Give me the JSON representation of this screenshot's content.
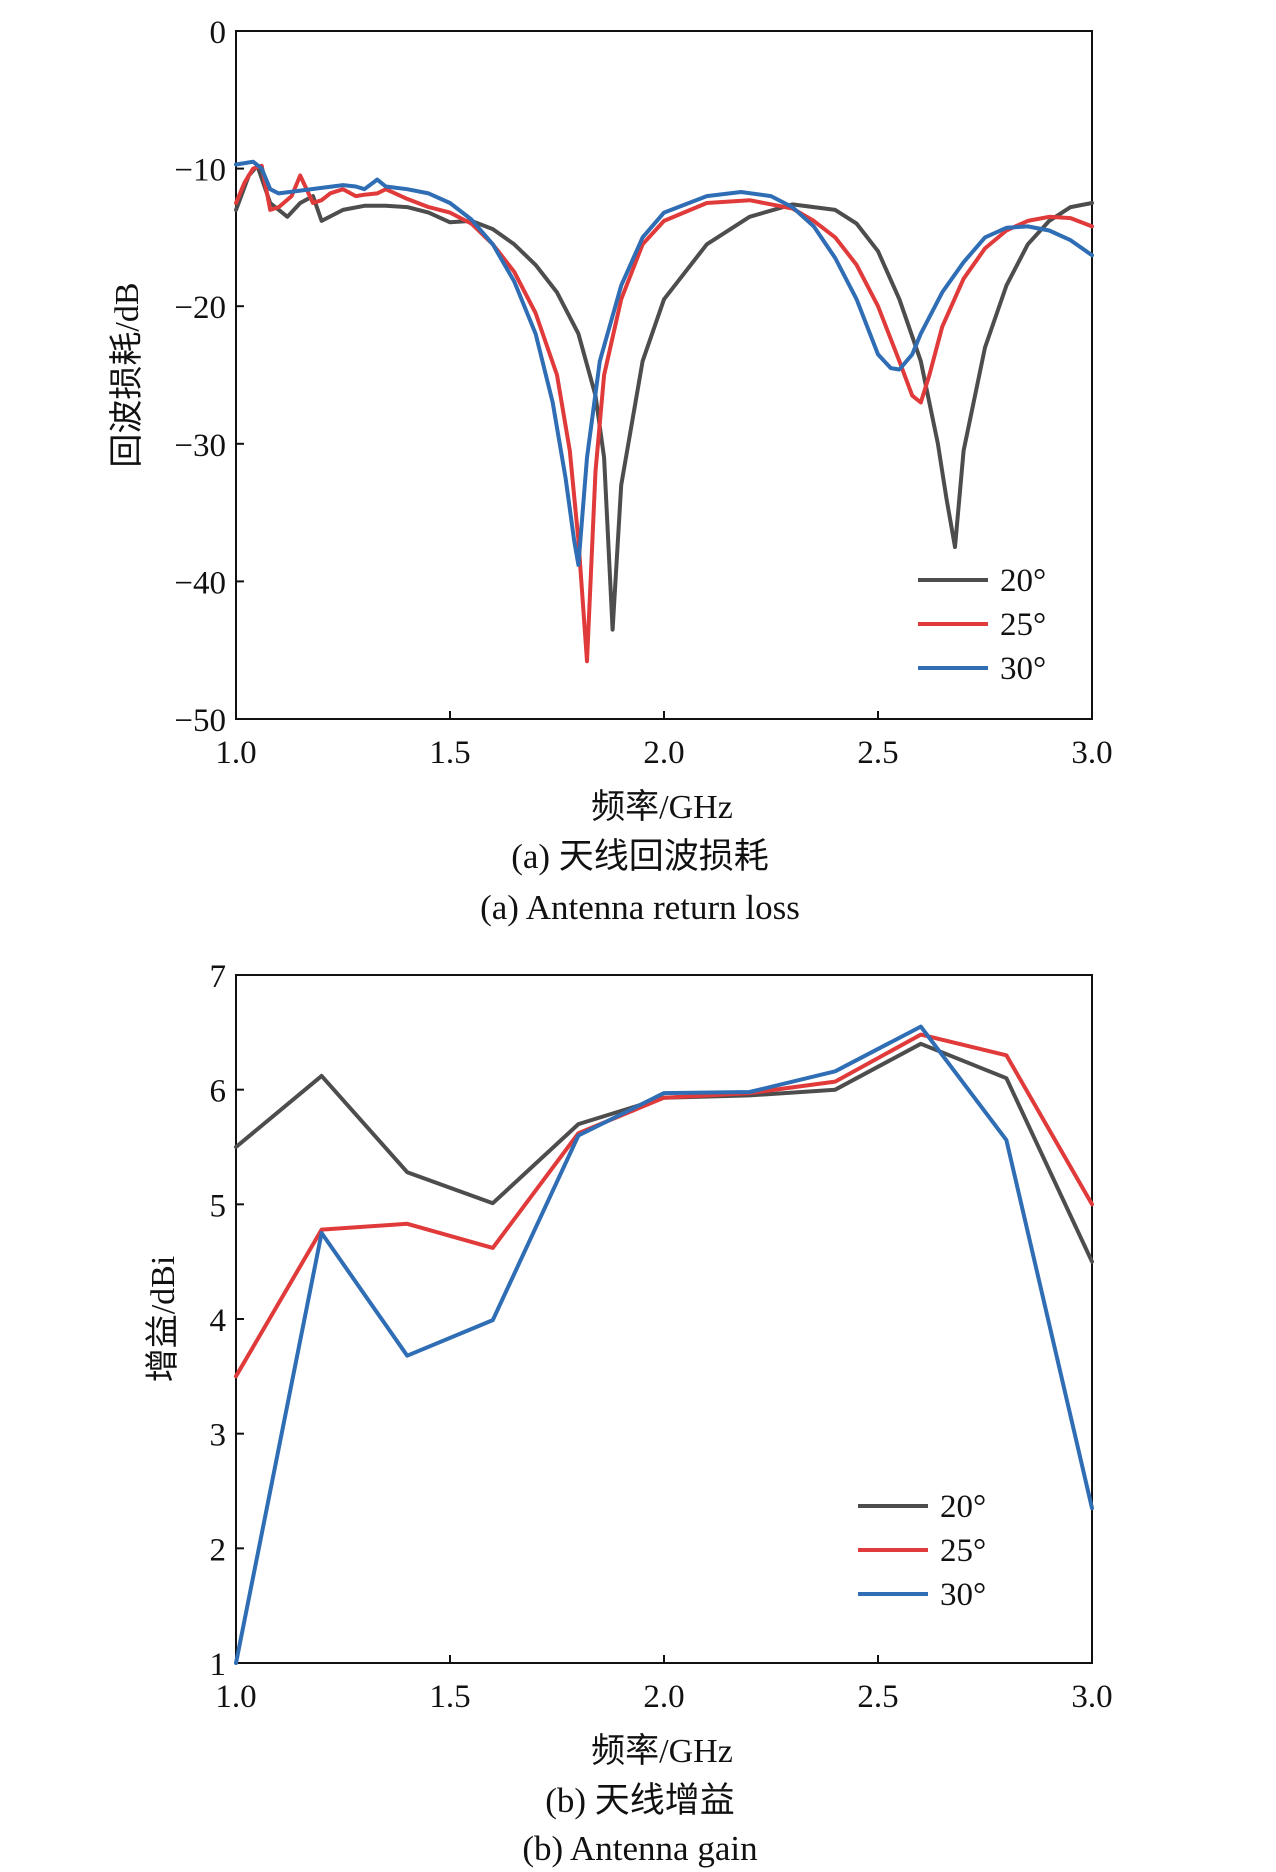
{
  "figure": {
    "caption_a_cn": "(a) 天线回波损耗",
    "caption_a_en": "(a) Antenna return loss",
    "caption_b_cn": "(b) 天线增益",
    "caption_b_en": "(b) Antenna gain"
  },
  "chart_data": [
    {
      "type": "line",
      "title": "",
      "xlabel": "频率/GHz",
      "ylabel": "回波损耗/dB",
      "xlim": [
        1.0,
        3.0
      ],
      "ylim": [
        -50,
        0
      ],
      "xticks": [
        "1.0",
        "1.5",
        "2.0",
        "2.5",
        "3.0"
      ],
      "yticks": [
        "0",
        "−10",
        "−20",
        "−30",
        "−40",
        "−50"
      ],
      "legend_position": "bottom-right",
      "grid": false,
      "series": [
        {
          "name": "20°",
          "color": "#4d4d4d",
          "x": [
            1.0,
            1.03,
            1.05,
            1.08,
            1.12,
            1.15,
            1.18,
            1.2,
            1.25,
            1.3,
            1.35,
            1.4,
            1.45,
            1.5,
            1.55,
            1.6,
            1.65,
            1.7,
            1.75,
            1.8,
            1.84,
            1.86,
            1.88,
            1.9,
            1.95,
            2.0,
            2.1,
            2.2,
            2.3,
            2.4,
            2.45,
            2.5,
            2.55,
            2.6,
            2.64,
            2.66,
            2.68,
            2.7,
            2.75,
            2.8,
            2.85,
            2.9,
            2.95,
            3.0
          ],
          "y": [
            -13.0,
            -10.5,
            -9.8,
            -12.5,
            -13.5,
            -12.5,
            -12.0,
            -13.8,
            -13.0,
            -12.7,
            -12.7,
            -12.8,
            -13.2,
            -13.9,
            -13.8,
            -14.4,
            -15.5,
            -17.0,
            -19.0,
            -22.0,
            -26.5,
            -31.0,
            -43.5,
            -33.0,
            -24.0,
            -19.5,
            -15.5,
            -13.5,
            -12.6,
            -13.0,
            -14.0,
            -16.0,
            -19.5,
            -24.0,
            -30.0,
            -34.0,
            -37.5,
            -30.5,
            -23.0,
            -18.5,
            -15.5,
            -13.8,
            -12.8,
            -12.5
          ]
        },
        {
          "name": "25°",
          "color": "#e03a3a",
          "x": [
            1.0,
            1.02,
            1.04,
            1.06,
            1.08,
            1.1,
            1.13,
            1.15,
            1.18,
            1.2,
            1.22,
            1.25,
            1.28,
            1.3,
            1.33,
            1.35,
            1.4,
            1.45,
            1.5,
            1.55,
            1.6,
            1.65,
            1.7,
            1.75,
            1.78,
            1.8,
            1.82,
            1.84,
            1.86,
            1.9,
            1.95,
            2.0,
            2.1,
            2.2,
            2.3,
            2.35,
            2.4,
            2.45,
            2.5,
            2.55,
            2.58,
            2.6,
            2.62,
            2.65,
            2.7,
            2.75,
            2.8,
            2.85,
            2.9,
            2.95,
            3.0
          ],
          "y": [
            -12.5,
            -11.0,
            -10.0,
            -9.8,
            -13.0,
            -12.8,
            -12.0,
            -10.5,
            -12.5,
            -12.3,
            -11.8,
            -11.5,
            -12.0,
            -11.9,
            -11.8,
            -11.5,
            -12.2,
            -12.8,
            -13.2,
            -14.0,
            -15.5,
            -17.5,
            -20.5,
            -25.0,
            -30.5,
            -37.0,
            -45.8,
            -32.0,
            -25.0,
            -19.5,
            -15.5,
            -13.8,
            -12.5,
            -12.3,
            -12.9,
            -13.8,
            -15.0,
            -17.0,
            -20.0,
            -24.0,
            -26.5,
            -27.0,
            -25.0,
            -21.5,
            -18.0,
            -15.8,
            -14.5,
            -13.8,
            -13.5,
            -13.6,
            -14.2
          ]
        },
        {
          "name": "30°",
          "color": "#2f6db5",
          "x": [
            1.0,
            1.02,
            1.04,
            1.06,
            1.08,
            1.1,
            1.15,
            1.2,
            1.25,
            1.28,
            1.3,
            1.33,
            1.35,
            1.4,
            1.45,
            1.5,
            1.55,
            1.6,
            1.65,
            1.7,
            1.74,
            1.77,
            1.79,
            1.8,
            1.82,
            1.85,
            1.9,
            1.95,
            2.0,
            2.1,
            2.18,
            2.25,
            2.3,
            2.35,
            2.4,
            2.45,
            2.5,
            2.53,
            2.55,
            2.58,
            2.6,
            2.65,
            2.7,
            2.75,
            2.8,
            2.85,
            2.9,
            2.95,
            3.0
          ],
          "y": [
            -9.7,
            -9.6,
            -9.5,
            -10.0,
            -11.5,
            -11.8,
            -11.6,
            -11.4,
            -11.2,
            -11.3,
            -11.5,
            -10.8,
            -11.3,
            -11.5,
            -11.8,
            -12.5,
            -13.7,
            -15.5,
            -18.2,
            -22.0,
            -27.0,
            -32.5,
            -37.0,
            -38.8,
            -31.0,
            -24.0,
            -18.5,
            -15.0,
            -13.2,
            -12.0,
            -11.7,
            -12.0,
            -12.8,
            -14.2,
            -16.5,
            -19.5,
            -23.5,
            -24.5,
            -24.6,
            -23.5,
            -22.0,
            -19.0,
            -16.8,
            -15.0,
            -14.3,
            -14.2,
            -14.5,
            -15.2,
            -16.3
          ]
        }
      ]
    },
    {
      "type": "line",
      "title": "",
      "xlabel": "频率/GHz",
      "ylabel": "增益/dBi",
      "xlim": [
        1.0,
        3.0
      ],
      "ylim": [
        1,
        7
      ],
      "xticks": [
        "1.0",
        "1.5",
        "2.0",
        "2.5",
        "3.0"
      ],
      "yticks": [
        "1",
        "2",
        "3",
        "4",
        "5",
        "6",
        "7"
      ],
      "legend_position": "bottom-right",
      "grid": false,
      "series": [
        {
          "name": "20°",
          "color": "#4d4d4d",
          "x": [
            1.0,
            1.2,
            1.4,
            1.6,
            1.8,
            2.0,
            2.2,
            2.4,
            2.6,
            2.8,
            3.0
          ],
          "y": [
            5.5,
            6.12,
            5.28,
            5.01,
            5.7,
            5.93,
            5.95,
            6.0,
            6.4,
            6.1,
            4.5
          ]
        },
        {
          "name": "25°",
          "color": "#e03a3a",
          "x": [
            1.0,
            1.2,
            1.4,
            1.6,
            1.8,
            2.0,
            2.2,
            2.4,
            2.6,
            2.8,
            3.0
          ],
          "y": [
            3.5,
            4.78,
            4.83,
            4.62,
            5.62,
            5.93,
            5.97,
            6.07,
            6.48,
            6.3,
            5.0
          ]
        },
        {
          "name": "30°",
          "color": "#2f6db5",
          "x": [
            1.0,
            1.2,
            1.4,
            1.6,
            1.8,
            2.0,
            2.2,
            2.4,
            2.6,
            2.8,
            3.0
          ],
          "y": [
            1.0,
            4.75,
            3.68,
            3.99,
            5.6,
            5.97,
            5.98,
            6.16,
            6.55,
            5.56,
            2.35
          ]
        }
      ]
    }
  ]
}
